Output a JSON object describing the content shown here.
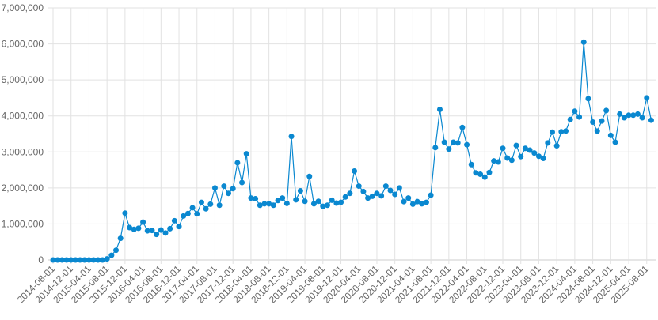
{
  "chart_data": {
    "type": "line",
    "title": "",
    "xlabel": "",
    "ylabel": "",
    "ylim": [
      0,
      7000000
    ],
    "yticks": [
      "0",
      "1,000,000",
      "2,000,000",
      "3,000,000",
      "4,000,000",
      "5,000,000",
      "6,000,000",
      "7,000,000"
    ],
    "ytick_values": [
      0,
      1000000,
      2000000,
      3000000,
      4000000,
      5000000,
      6000000,
      7000000
    ],
    "xticks": [
      "2014-08-01",
      "2014-12-01",
      "2015-04-01",
      "2015-08-01",
      "2015-12-01",
      "2016-04-01",
      "2016-08-01",
      "2016-12-01",
      "2017-04-01",
      "2017-08-01",
      "2017-12-01",
      "2018-04-01",
      "2018-08-01",
      "2018-12-01",
      "2019-04-01",
      "2019-08-01",
      "2019-12-01",
      "2020-04-01",
      "2020-08-01",
      "2020-12-01",
      "2021-04-01",
      "2021-08-01",
      "2021-12-01",
      "2022-04-01",
      "2022-08-01",
      "2022-12-01",
      "2023-04-01",
      "2023-08-01",
      "2023-12-01",
      "2024-04-01",
      "2024-08-01",
      "2024-12-01",
      "2025-04-01",
      "2025-08-01"
    ],
    "grid": true,
    "color": "#0a88d0",
    "x_start": "2014-08-01",
    "x_step": "1 month",
    "values": [
      0,
      0,
      0,
      0,
      0,
      0,
      0,
      0,
      0,
      0,
      0,
      0,
      30000,
      130000,
      270000,
      600000,
      1300000,
      900000,
      850000,
      880000,
      1050000,
      810000,
      820000,
      710000,
      830000,
      750000,
      870000,
      1090000,
      930000,
      1220000,
      1290000,
      1450000,
      1280000,
      1600000,
      1420000,
      1550000,
      2000000,
      1520000,
      2050000,
      1850000,
      1980000,
      2700000,
      2150000,
      2950000,
      1720000,
      1700000,
      1520000,
      1560000,
      1560000,
      1520000,
      1650000,
      1720000,
      1570000,
      3430000,
      1670000,
      1920000,
      1630000,
      2320000,
      1560000,
      1630000,
      1490000,
      1520000,
      1660000,
      1580000,
      1600000,
      1750000,
      1850000,
      2470000,
      2050000,
      1900000,
      1720000,
      1770000,
      1850000,
      1780000,
      2050000,
      1930000,
      1820000,
      2000000,
      1620000,
      1720000,
      1550000,
      1620000,
      1560000,
      1600000,
      1800000,
      3120000,
      4180000,
      3270000,
      3080000,
      3270000,
      3250000,
      3680000,
      3200000,
      2650000,
      2420000,
      2380000,
      2300000,
      2430000,
      2750000,
      2720000,
      3100000,
      2830000,
      2770000,
      3180000,
      2870000,
      3100000,
      3050000,
      2970000,
      2880000,
      2820000,
      3250000,
      3550000,
      3170000,
      3560000,
      3580000,
      3900000,
      4130000,
      3970000,
      6050000,
      4480000,
      3830000,
      3580000,
      3860000,
      4150000,
      3460000,
      3270000,
      4050000,
      3950000,
      4020000,
      4020000,
      4050000,
      3950000,
      4500000,
      3880000
    ]
  }
}
